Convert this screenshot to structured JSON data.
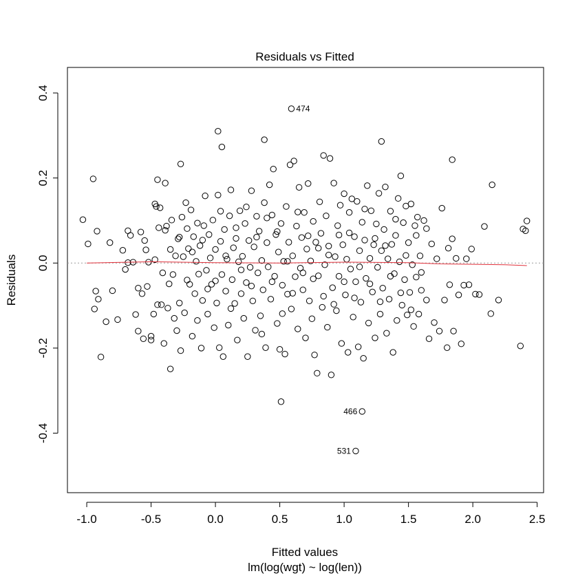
{
  "chart_data": {
    "type": "scatter",
    "title": "Residuals vs Fitted",
    "xlabel": "Fitted values",
    "sublabel": "lm(log(wgt) ~ log(len))",
    "ylabel": "Residuals",
    "xlim": [
      -1.15,
      2.55
    ],
    "ylim": [
      -0.54,
      0.46
    ],
    "x_ticks": [
      -1.0,
      -0.5,
      0.0,
      0.5,
      1.0,
      1.5,
      2.0,
      2.5
    ],
    "x_tick_labels": [
      "-1.0",
      "-0.5",
      "0.0",
      "0.5",
      "1.0",
      "1.5",
      "2.0",
      "2.5"
    ],
    "y_ticks": [
      -0.4,
      -0.2,
      0.0,
      0.2,
      0.4
    ],
    "y_tick_labels": [
      "-0.4",
      "-0.2",
      "0.0",
      "0.2",
      "0.4"
    ],
    "zero_line": 0.0,
    "colors": {
      "points": "#000000",
      "smoother": "#e0303a",
      "zero_line": "#9a9a9a"
    },
    "labeled_points": [
      {
        "label": "474",
        "x": 0.59,
        "y": 0.363
      },
      {
        "label": "466",
        "x": 1.14,
        "y": -0.349
      },
      {
        "label": "531",
        "x": 1.09,
        "y": -0.442
      }
    ],
    "smoother": {
      "x": [
        -1.0,
        -0.5,
        0.0,
        0.5,
        1.0,
        1.5,
        1.75,
        2.0,
        2.25,
        2.42
      ],
      "y": [
        0.0,
        0.003,
        0.001,
        0.0,
        0.002,
        0.001,
        -0.002,
        -0.003,
        -0.004,
        -0.006
      ]
    },
    "points": [
      [
        0.59,
        0.363
      ],
      [
        1.14,
        -0.349
      ],
      [
        1.09,
        -0.442
      ],
      [
        0.51,
        -0.326
      ],
      [
        0.02,
        0.31
      ],
      [
        0.05,
        0.273
      ],
      [
        0.38,
        0.29
      ],
      [
        1.29,
        0.286
      ],
      [
        -0.95,
        0.198
      ],
      [
        -0.27,
        0.233
      ],
      [
        1.84,
        0.243
      ],
      [
        2.15,
        0.184
      ],
      [
        -1.03,
        0.102
      ],
      [
        -0.99,
        0.045
      ],
      [
        -0.92,
        0.075
      ],
      [
        -0.93,
        -0.066
      ],
      [
        -0.91,
        -0.085
      ],
      [
        -0.94,
        -0.108
      ],
      [
        -0.89,
        -0.221
      ],
      [
        -0.85,
        -0.138
      ],
      [
        -0.8,
        -0.065
      ],
      [
        -0.82,
        0.048
      ],
      [
        -0.76,
        -0.133
      ],
      [
        -0.72,
        0.03
      ],
      [
        -0.68,
        0.076
      ],
      [
        -0.68,
        0.001
      ],
      [
        -0.66,
        0.065
      ],
      [
        -0.64,
        0.002
      ],
      [
        -0.62,
        -0.121
      ],
      [
        -0.6,
        -0.16
      ],
      [
        -0.6,
        -0.059
      ],
      [
        -0.58,
        0.073
      ],
      [
        -0.57,
        -0.072
      ],
      [
        -0.56,
        -0.178
      ],
      [
        -0.54,
        0.031
      ],
      [
        -0.53,
        -0.055
      ],
      [
        -0.52,
        0.002
      ],
      [
        -0.5,
        -0.172
      ],
      [
        -0.5,
        -0.181
      ],
      [
        -0.48,
        -0.12
      ],
      [
        -0.47,
        0.008
      ],
      [
        -0.47,
        0.139
      ],
      [
        -0.46,
        0.133
      ],
      [
        -0.45,
        -0.098
      ],
      [
        -0.44,
        0.083
      ],
      [
        -0.45,
        0.196
      ],
      [
        -0.43,
        0.13
      ],
      [
        -0.42,
        -0.098
      ],
      [
        -0.4,
        -0.189
      ],
      [
        -0.39,
        0.077
      ],
      [
        -0.39,
        0.188
      ],
      [
        -0.38,
        0.087
      ],
      [
        -0.37,
        -0.106
      ],
      [
        -0.36,
        -0.049
      ],
      [
        -0.35,
        -0.249
      ],
      [
        -0.35,
        0.032
      ],
      [
        -0.33,
        -0.027
      ],
      [
        -0.32,
        -0.13
      ],
      [
        -0.31,
        0.017
      ],
      [
        -0.3,
        -0.159
      ],
      [
        -0.29,
        0.057
      ],
      [
        -0.28,
        -0.094
      ],
      [
        -0.27,
        -0.206
      ],
      [
        -0.26,
        0.108
      ],
      [
        -0.25,
        0.015
      ],
      [
        -0.24,
        -0.117
      ],
      [
        -0.23,
        0.142
      ],
      [
        -0.22,
        0.081
      ],
      [
        -0.21,
        0.034
      ],
      [
        -0.2,
        -0.05
      ],
      [
        -0.19,
        0.125
      ],
      [
        -0.18,
        -0.172
      ],
      [
        -0.17,
        0.062
      ],
      [
        -0.16,
        -0.072
      ],
      [
        -0.15,
        0.004
      ],
      [
        -0.14,
        0.094
      ],
      [
        -0.13,
        -0.026
      ],
      [
        -0.12,
        0.041
      ],
      [
        -0.11,
        -0.2
      ],
      [
        -0.1,
        -0.088
      ],
      [
        -0.09,
        0.088
      ],
      [
        -0.08,
        0.158
      ],
      [
        -0.07,
        -0.017
      ],
      [
        -0.06,
        -0.12
      ],
      [
        -0.05,
        0.067
      ],
      [
        -0.04,
        0.012
      ],
      [
        -0.03,
        -0.05
      ],
      [
        -0.02,
        0.101
      ],
      [
        -0.01,
        -0.152
      ],
      [
        0.0,
        0.032
      ],
      [
        0.01,
        -0.094
      ],
      [
        0.02,
        0.16
      ],
      [
        0.03,
        -0.199
      ],
      [
        0.04,
        0.051
      ],
      [
        0.05,
        -0.027
      ],
      [
        0.06,
        -0.22
      ],
      [
        0.07,
        0.079
      ],
      [
        0.08,
        -0.066
      ],
      [
        0.09,
        0.009
      ],
      [
        0.1,
        -0.146
      ],
      [
        0.11,
        0.111
      ],
      [
        0.12,
        0.172
      ],
      [
        0.13,
        -0.039
      ],
      [
        0.14,
        0.036
      ],
      [
        0.15,
        -0.095
      ],
      [
        0.16,
        0.058
      ],
      [
        0.17,
        -0.181
      ],
      [
        0.18,
        0.003
      ],
      [
        0.19,
        0.123
      ],
      [
        0.2,
        -0.072
      ],
      [
        0.21,
        0.016
      ],
      [
        0.22,
        -0.13
      ],
      [
        0.23,
        0.093
      ],
      [
        0.24,
        -0.046
      ],
      [
        0.25,
        -0.22
      ],
      [
        0.26,
        0.053
      ],
      [
        0.27,
        -0.01
      ],
      [
        0.28,
        0.17
      ],
      [
        0.29,
        -0.089
      ],
      [
        0.3,
        0.038
      ],
      [
        0.31,
        -0.158
      ],
      [
        0.32,
        0.11
      ],
      [
        0.33,
        -0.023
      ],
      [
        0.34,
        0.075
      ],
      [
        0.35,
        -0.124
      ],
      [
        0.36,
        0.006
      ],
      [
        0.37,
        -0.063
      ],
      [
        0.38,
        0.142
      ],
      [
        0.39,
        -0.199
      ],
      [
        0.4,
        0.048
      ],
      [
        0.41,
        -0.009
      ],
      [
        0.42,
        0.184
      ],
      [
        0.43,
        -0.085
      ],
      [
        0.44,
        0.113
      ],
      [
        0.45,
        0.221
      ],
      [
        0.46,
        -0.031
      ],
      [
        0.47,
        0.067
      ],
      [
        0.48,
        -0.142
      ],
      [
        0.49,
        0.026
      ],
      [
        0.5,
        -0.203
      ],
      [
        0.51,
        0.093
      ],
      [
        0.52,
        -0.052
      ],
      [
        0.53,
        0.004
      ],
      [
        0.54,
        -0.214
      ],
      [
        0.55,
        0.133
      ],
      [
        0.56,
        -0.073
      ],
      [
        0.57,
        0.049
      ],
      [
        0.58,
        0.231
      ],
      [
        0.59,
        -0.108
      ],
      [
        0.6,
        0.017
      ],
      [
        0.61,
        0.24
      ],
      [
        0.62,
        -0.032
      ],
      [
        0.63,
        0.087
      ],
      [
        0.64,
        -0.155
      ],
      [
        0.65,
        0.178
      ],
      [
        0.66,
        -0.012
      ],
      [
        0.67,
        0.06
      ],
      [
        0.68,
        -0.063
      ],
      [
        0.69,
        0.119
      ],
      [
        0.7,
        -0.176
      ],
      [
        0.71,
        0.033
      ],
      [
        0.72,
        0.187
      ],
      [
        0.73,
        -0.089
      ],
      [
        0.74,
        0.005
      ],
      [
        0.75,
        -0.131
      ],
      [
        0.76,
        0.098
      ],
      [
        0.77,
        -0.216
      ],
      [
        0.78,
        0.049
      ],
      [
        0.79,
        -0.259
      ],
      [
        0.8,
        -0.03
      ],
      [
        0.81,
        0.144
      ],
      [
        0.82,
        0.07
      ],
      [
        0.83,
        -0.104
      ],
      [
        0.84,
        0.253
      ],
      [
        0.85,
        -0.004
      ],
      [
        0.86,
        0.111
      ],
      [
        0.87,
        -0.151
      ],
      [
        0.88,
        0.04
      ],
      [
        0.89,
        0.246
      ],
      [
        0.9,
        -0.263
      ],
      [
        0.91,
        -0.058
      ],
      [
        0.92,
        0.188
      ],
      [
        0.93,
        0.015
      ],
      [
        0.94,
        -0.112
      ],
      [
        0.95,
        0.088
      ],
      [
        0.96,
        -0.031
      ],
      [
        0.97,
        0.136
      ],
      [
        0.98,
        -0.189
      ],
      [
        0.99,
        0.043
      ],
      [
        1.0,
        0.163
      ],
      [
        1.01,
        -0.075
      ],
      [
        1.02,
        0.009
      ],
      [
        1.03,
        -0.21
      ],
      [
        1.04,
        0.119
      ],
      [
        1.05,
        -0.014
      ],
      [
        1.06,
        0.151
      ],
      [
        1.07,
        -0.127
      ],
      [
        1.08,
        0.062
      ],
      [
        1.09,
        -0.044
      ],
      [
        1.1,
        0.145
      ],
      [
        1.11,
        -0.197
      ],
      [
        1.12,
        0.029
      ],
      [
        1.13,
        -0.092
      ],
      [
        1.14,
        0.096
      ],
      [
        1.15,
        -0.224
      ],
      [
        1.16,
        0.054
      ],
      [
        1.17,
        -0.036
      ],
      [
        1.18,
        0.182
      ],
      [
        1.19,
        -0.141
      ],
      [
        1.2,
        0.011
      ],
      [
        1.21,
        0.123
      ],
      [
        1.22,
        -0.068
      ],
      [
        1.23,
        0.043
      ],
      [
        1.24,
        -0.176
      ],
      [
        1.25,
        0.092
      ],
      [
        1.26,
        -0.01
      ],
      [
        1.27,
        0.164
      ],
      [
        1.28,
        -0.12
      ],
      [
        1.29,
        0.029
      ],
      [
        1.3,
        -0.059
      ],
      [
        1.31,
        0.079
      ],
      [
        1.32,
        0.179
      ],
      [
        1.33,
        -0.165
      ],
      [
        1.34,
        0.01
      ],
      [
        1.35,
        -0.085
      ],
      [
        1.36,
        0.122
      ],
      [
        1.37,
        0.044
      ],
      [
        1.38,
        -0.21
      ],
      [
        1.39,
        -0.025
      ],
      [
        1.4,
        0.065
      ],
      [
        1.41,
        -0.135
      ],
      [
        1.42,
        0.152
      ],
      [
        1.43,
        0.003
      ],
      [
        1.44,
        0.205
      ],
      [
        1.45,
        -0.099
      ],
      [
        1.46,
        0.095
      ],
      [
        1.47,
        -0.039
      ],
      [
        1.48,
        0.134
      ],
      [
        1.49,
        -0.122
      ],
      [
        1.5,
        0.048
      ],
      [
        1.51,
        -0.069
      ],
      [
        1.52,
        0.139
      ],
      [
        1.53,
        -0.004
      ],
      [
        1.54,
        -0.149
      ],
      [
        1.55,
        0.088
      ],
      [
        1.56,
        -0.033
      ],
      [
        1.57,
        0.108
      ],
      [
        1.58,
        -0.12
      ],
      [
        1.59,
        0.017
      ],
      [
        1.6,
        -0.064
      ],
      [
        1.62,
        0.1
      ],
      [
        1.64,
        -0.087
      ],
      [
        1.66,
        -0.178
      ],
      [
        1.68,
        0.045
      ],
      [
        1.7,
        -0.14
      ],
      [
        1.72,
        0.01
      ],
      [
        1.74,
        -0.16
      ],
      [
        1.76,
        0.129
      ],
      [
        1.78,
        -0.087
      ],
      [
        1.8,
        -0.199
      ],
      [
        1.81,
        0.035
      ],
      [
        1.82,
        -0.051
      ],
      [
        1.84,
        0.057
      ],
      [
        1.85,
        -0.16
      ],
      [
        1.87,
        0.011
      ],
      [
        1.89,
        -0.075
      ],
      [
        1.91,
        -0.19
      ],
      [
        1.93,
        -0.052
      ],
      [
        1.95,
        0.01
      ],
      [
        1.97,
        -0.051
      ],
      [
        1.99,
        0.033
      ],
      [
        2.02,
        -0.073
      ],
      [
        2.05,
        -0.074
      ],
      [
        2.09,
        0.086
      ],
      [
        2.14,
        -0.119
      ],
      [
        2.2,
        -0.087
      ],
      [
        2.37,
        -0.195
      ],
      [
        2.39,
        0.08
      ],
      [
        2.41,
        0.076
      ],
      [
        2.42,
        0.099
      ],
      [
        -0.7,
        -0.015
      ],
      [
        -0.55,
        0.053
      ],
      [
        -0.41,
        -0.023
      ],
      [
        -0.34,
        0.101
      ],
      [
        -0.28,
        0.061
      ],
      [
        -0.22,
        -0.04
      ],
      [
        -0.18,
        0.026
      ],
      [
        -0.14,
        -0.135
      ],
      [
        -0.1,
        0.054
      ],
      [
        -0.06,
        -0.061
      ],
      [
        0.0,
        -0.042
      ],
      [
        0.04,
        0.122
      ],
      [
        0.08,
        0.017
      ],
      [
        0.12,
        -0.107
      ],
      [
        0.16,
        0.083
      ],
      [
        0.2,
        -0.016
      ],
      [
        0.24,
        0.132
      ],
      [
        0.28,
        -0.054
      ],
      [
        0.32,
        0.061
      ],
      [
        0.36,
        -0.167
      ],
      [
        0.4,
        0.106
      ],
      [
        0.44,
        -0.044
      ],
      [
        0.48,
        0.074
      ],
      [
        0.52,
        -0.119
      ],
      [
        0.56,
        0.004
      ],
      [
        0.6,
        -0.071
      ],
      [
        0.64,
        0.12
      ],
      [
        0.68,
        -0.023
      ],
      [
        0.72,
        0.064
      ],
      [
        0.76,
        -0.037
      ],
      [
        0.8,
        0.035
      ],
      [
        0.84,
        -0.078
      ],
      [
        0.88,
        0.019
      ],
      [
        0.92,
        -0.097
      ],
      [
        0.96,
        0.066
      ],
      [
        1.0,
        -0.044
      ],
      [
        1.04,
        0.071
      ],
      [
        1.08,
        -0.082
      ],
      [
        1.12,
        -0.009
      ],
      [
        1.16,
        0.127
      ],
      [
        1.2,
        -0.049
      ],
      [
        1.24,
        0.058
      ],
      [
        1.28,
        -0.091
      ],
      [
        1.32,
        0.041
      ],
      [
        1.36,
        -0.031
      ],
      [
        1.4,
        0.103
      ],
      [
        1.44,
        -0.07
      ],
      [
        1.48,
        0.018
      ],
      [
        1.52,
        -0.11
      ],
      [
        1.56,
        0.065
      ],
      [
        1.6,
        -0.022
      ],
      [
        1.64,
        0.081
      ]
    ]
  }
}
